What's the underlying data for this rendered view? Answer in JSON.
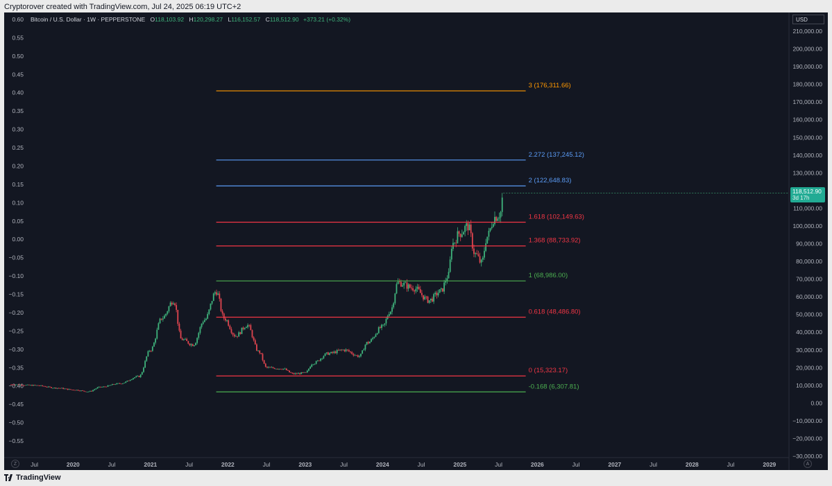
{
  "header": {
    "caption": "Cryptorover created with TradingView.com, Jul 24, 2025 06:19 UTC+2"
  },
  "legend": {
    "symbol": "Bitcoin / U.S. Dollar · 1W · PEPPERSTONE",
    "open_label": "O",
    "open": "118,103.92",
    "high_label": "H",
    "high": "120,298.27",
    "low_label": "L",
    "low": "116,152.57",
    "close_label": "C",
    "close": "118,512.90",
    "change": "+373.21 (+0.32%)"
  },
  "currency": "USD",
  "last_price": {
    "value": "118,512.90",
    "countdown": "3d 17h"
  },
  "footer": {
    "brand": "TradingView",
    "z_button": "Z",
    "a_button": "A"
  },
  "colors": {
    "background": "#131722",
    "up": "#3fb37c",
    "down": "#e0454f",
    "fib_orange": "#ff9800",
    "fib_blue": "#5b9cf6",
    "fib_red": "#f23645",
    "fib_green": "#4caf50",
    "price_tag": "#22ab94"
  },
  "chart_data": {
    "type": "candlestick",
    "title": "Bitcoin / U.S. Dollar · 1W · PEPPERSTONE",
    "right_axis": {
      "unit": "USD",
      "range": [
        -30000,
        210000
      ],
      "ticks": [
        "210,000.00",
        "200,000.00",
        "190,000.00",
        "180,000.00",
        "170,000.00",
        "160,000.00",
        "150,000.00",
        "140,000.00",
        "130,000.00",
        "120,000.00",
        "110,000.00",
        "100,000.00",
        "90,000.00",
        "80,000.00",
        "70,000.00",
        "60,000.00",
        "50,000.00",
        "40,000.00",
        "30,000.00",
        "20,000.00",
        "10,000.00",
        "0.00",
        "−10,000.00",
        "−20,000.00",
        "−30,000.00"
      ],
      "tick_values": [
        210000,
        200000,
        190000,
        180000,
        170000,
        160000,
        150000,
        140000,
        130000,
        120000,
        110000,
        100000,
        90000,
        80000,
        70000,
        60000,
        50000,
        40000,
        30000,
        20000,
        10000,
        0,
        -10000,
        -20000,
        -30000
      ]
    },
    "left_axis": {
      "range": [
        -0.6,
        0.6
      ],
      "ticks": [
        "0.60",
        "0.55",
        "0.50",
        "0.45",
        "0.40",
        "0.35",
        "0.30",
        "0.25",
        "0.20",
        "0.15",
        "0.10",
        "0.05",
        "0.00",
        "−0.05",
        "−0.10",
        "−0.15",
        "−0.20",
        "−0.25",
        "−0.30",
        "−0.35",
        "−0.40",
        "−0.45",
        "−0.50",
        "−0.55"
      ],
      "tick_values": [
        0.6,
        0.55,
        0.5,
        0.45,
        0.4,
        0.35,
        0.3,
        0.25,
        0.2,
        0.15,
        0.1,
        0.05,
        0.0,
        -0.05,
        -0.1,
        -0.15,
        -0.2,
        -0.25,
        -0.3,
        -0.35,
        -0.4,
        -0.45,
        -0.5,
        -0.55
      ]
    },
    "x_axis": {
      "range": [
        2019.2,
        2029.3
      ],
      "ticks": [
        {
          "label": "Jul",
          "t": 2019.5,
          "bold": false
        },
        {
          "label": "2020",
          "t": 2020.0,
          "bold": true
        },
        {
          "label": "Jul",
          "t": 2020.5,
          "bold": false
        },
        {
          "label": "2021",
          "t": 2021.0,
          "bold": true
        },
        {
          "label": "Jul",
          "t": 2021.5,
          "bold": false
        },
        {
          "label": "2022",
          "t": 2022.0,
          "bold": true
        },
        {
          "label": "Jul",
          "t": 2022.5,
          "bold": false
        },
        {
          "label": "2023",
          "t": 2023.0,
          "bold": true
        },
        {
          "label": "Jul",
          "t": 2023.5,
          "bold": false
        },
        {
          "label": "2024",
          "t": 2024.0,
          "bold": true
        },
        {
          "label": "Jul",
          "t": 2024.5,
          "bold": false
        },
        {
          "label": "2025",
          "t": 2025.0,
          "bold": true
        },
        {
          "label": "Jul",
          "t": 2025.5,
          "bold": false
        },
        {
          "label": "2026",
          "t": 2026.0,
          "bold": true
        },
        {
          "label": "Jul",
          "t": 2026.5,
          "bold": false
        },
        {
          "label": "2027",
          "t": 2027.0,
          "bold": true
        },
        {
          "label": "Jul",
          "t": 2027.5,
          "bold": false
        },
        {
          "label": "2028",
          "t": 2028.0,
          "bold": true
        },
        {
          "label": "Jul",
          "t": 2028.5,
          "bold": false
        },
        {
          "label": "2029",
          "t": 2029.0,
          "bold": true
        }
      ]
    },
    "fib_extension": {
      "t_start": 2021.85,
      "t_end": 2025.85,
      "levels": [
        {
          "ratio": "3",
          "price": 176311.66,
          "label": "3 (176,311.66)",
          "color": "#ff9800"
        },
        {
          "ratio": "2.272",
          "price": 137245.12,
          "label": "2.272 (137,245.12)",
          "color": "#5b9cf6"
        },
        {
          "ratio": "2",
          "price": 122648.83,
          "label": "2 (122,648.83)",
          "color": "#5b9cf6"
        },
        {
          "ratio": "1.618",
          "price": 102149.63,
          "label": "1.618 (102,149.63)",
          "color": "#f23645"
        },
        {
          "ratio": "1.368",
          "price": 88733.92,
          "label": "1.368 (88,733.92)",
          "color": "#f23645"
        },
        {
          "ratio": "1",
          "price": 68986.0,
          "label": "1 (68,986.00)",
          "color": "#4caf50"
        },
        {
          "ratio": "0.618",
          "price": 48486.8,
          "label": "0.618 (48,486.80)",
          "color": "#f23645"
        },
        {
          "ratio": "0",
          "price": 15323.17,
          "label": "0 (15,323.17)",
          "color": "#f23645"
        },
        {
          "ratio": "-0.168",
          "price": 6307.81,
          "label": "-0.168 (6,307.81)",
          "color": "#4caf50"
        }
      ]
    },
    "anchors": [
      {
        "t": 2019.2,
        "p": 10500
      },
      {
        "t": 2019.5,
        "p": 10000
      },
      {
        "t": 2019.8,
        "p": 8500
      },
      {
        "t": 2020.0,
        "p": 7500
      },
      {
        "t": 2020.2,
        "p": 6500
      },
      {
        "t": 2020.35,
        "p": 9000
      },
      {
        "t": 2020.6,
        "p": 11000
      },
      {
        "t": 2020.85,
        "p": 15000
      },
      {
        "t": 2021.0,
        "p": 30000
      },
      {
        "t": 2021.15,
        "p": 48000
      },
      {
        "t": 2021.3,
        "p": 58000
      },
      {
        "t": 2021.4,
        "p": 36000
      },
      {
        "t": 2021.55,
        "p": 33000
      },
      {
        "t": 2021.7,
        "p": 47000
      },
      {
        "t": 2021.85,
        "p": 63000
      },
      {
        "t": 2021.95,
        "p": 48000
      },
      {
        "t": 2022.1,
        "p": 38000
      },
      {
        "t": 2022.25,
        "p": 44000
      },
      {
        "t": 2022.4,
        "p": 29000
      },
      {
        "t": 2022.5,
        "p": 20000
      },
      {
        "t": 2022.7,
        "p": 19500
      },
      {
        "t": 2022.85,
        "p": 16500
      },
      {
        "t": 2023.0,
        "p": 17000
      },
      {
        "t": 2023.1,
        "p": 22500
      },
      {
        "t": 2023.3,
        "p": 28000
      },
      {
        "t": 2023.5,
        "p": 30000
      },
      {
        "t": 2023.7,
        "p": 26500
      },
      {
        "t": 2023.8,
        "p": 34000
      },
      {
        "t": 2024.0,
        "p": 43000
      },
      {
        "t": 2024.1,
        "p": 52000
      },
      {
        "t": 2024.2,
        "p": 68000
      },
      {
        "t": 2024.4,
        "p": 65000
      },
      {
        "t": 2024.6,
        "p": 58000
      },
      {
        "t": 2024.75,
        "p": 63000
      },
      {
        "t": 2024.85,
        "p": 72000
      },
      {
        "t": 2024.9,
        "p": 90000
      },
      {
        "t": 2025.0,
        "p": 96000
      },
      {
        "t": 2025.1,
        "p": 100000
      },
      {
        "t": 2025.2,
        "p": 84000
      },
      {
        "t": 2025.28,
        "p": 79000
      },
      {
        "t": 2025.35,
        "p": 94000
      },
      {
        "t": 2025.45,
        "p": 105000
      },
      {
        "t": 2025.52,
        "p": 107000
      },
      {
        "t": 2025.56,
        "p": 118512.9
      }
    ]
  }
}
